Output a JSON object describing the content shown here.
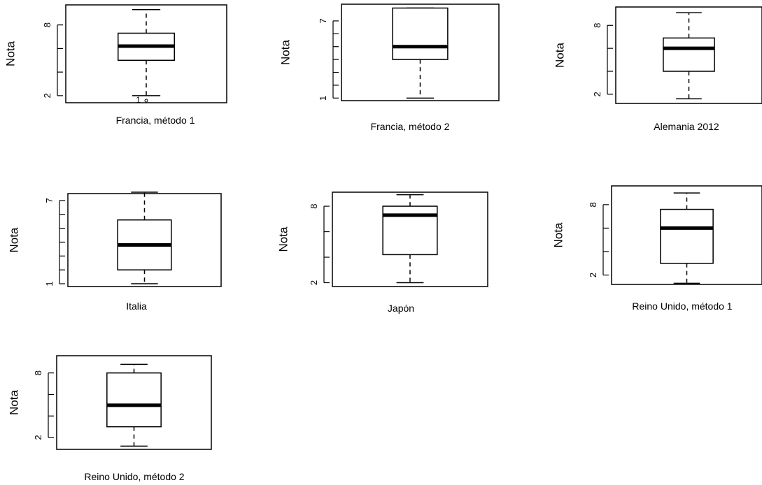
{
  "chart_data": [
    {
      "type": "boxplot",
      "caption": "Francia, método 1",
      "ylabel": "Nota",
      "ylim": [
        1.4,
        9.7
      ],
      "yticks": [
        2,
        4,
        6,
        8
      ],
      "ytick_labels": [
        "2",
        "",
        "",
        "8"
      ],
      "min": 2.0,
      "q1": 5.0,
      "median": 6.2,
      "q3": 7.3,
      "max": 9.3,
      "outliers": [
        1.0
      ],
      "outlier_label": "1"
    },
    {
      "type": "boxplot",
      "caption": "Francia, método 2",
      "ylabel": "Nota",
      "ylim": [
        0.8,
        8.3
      ],
      "yticks": [
        1,
        2,
        3,
        4,
        5,
        6,
        7
      ],
      "ytick_labels": [
        "1",
        "",
        "",
        "",
        "",
        "",
        "7"
      ],
      "min": 1.0,
      "q1": 4.0,
      "median": 5.0,
      "q3": 8.0,
      "max": 8.0,
      "outliers": []
    },
    {
      "type": "boxplot",
      "caption": "Alemania 2012",
      "ylabel": "Nota",
      "ylim": [
        1.2,
        9.6
      ],
      "yticks": [
        2,
        4,
        6,
        8
      ],
      "ytick_labels": [
        "2",
        "",
        "",
        "8"
      ],
      "min": 1.6,
      "q1": 4.0,
      "median": 6.0,
      "q3": 6.9,
      "max": 9.1,
      "outliers": []
    },
    {
      "type": "boxplot",
      "caption": "Italia",
      "ylabel": "Nota",
      "ylim": [
        0.8,
        7.5
      ],
      "yticks": [
        1,
        2,
        3,
        4,
        5,
        6,
        7
      ],
      "ytick_labels": [
        "1",
        "",
        "",
        "",
        "",
        "",
        "7"
      ],
      "min": 1.0,
      "q1": 2.0,
      "median": 3.8,
      "q3": 5.6,
      "max": 7.6,
      "outliers": []
    },
    {
      "type": "boxplot",
      "caption": "Japón",
      "ylabel": "Nota",
      "ylim": [
        1.7,
        9.1
      ],
      "yticks": [
        2,
        4,
        6,
        8
      ],
      "ytick_labels": [
        "2",
        "",
        "",
        "8"
      ],
      "min": 2.0,
      "q1": 4.2,
      "median": 7.3,
      "q3": 8.0,
      "max": 8.9,
      "outliers": []
    },
    {
      "type": "boxplot",
      "caption": "Reino Unido, método 1",
      "ylabel": "Nota",
      "ylim": [
        1.2,
        9.6
      ],
      "yticks": [
        2,
        4,
        6,
        8
      ],
      "ytick_labels": [
        "2",
        "",
        "",
        "8"
      ],
      "min": 1.3,
      "q1": 3.0,
      "median": 6.0,
      "q3": 7.6,
      "max": 9.0,
      "outliers": []
    },
    {
      "type": "boxplot",
      "caption": "Reino Unido, método 2",
      "ylabel": "Nota",
      "ylim": [
        0.9,
        9.6
      ],
      "yticks": [
        2,
        4,
        6,
        8
      ],
      "ytick_labels": [
        "2",
        "",
        "",
        "8"
      ],
      "min": 1.2,
      "q1": 3.0,
      "median": 5.0,
      "q3": 8.0,
      "max": 8.8,
      "outliers": []
    }
  ]
}
